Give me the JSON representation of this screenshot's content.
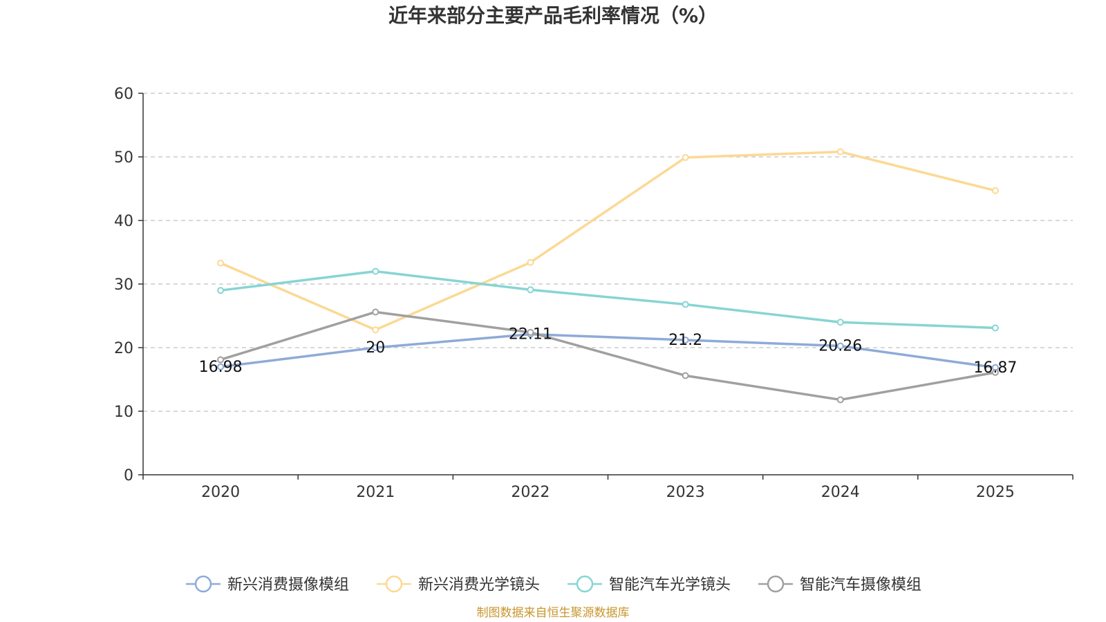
{
  "chart_data": {
    "type": "line",
    "title": "近年来部分主要产品毛利率情况（%）",
    "categories": [
      "2020",
      "2021",
      "2022",
      "2023",
      "2024",
      "2025"
    ],
    "ylim": [
      0,
      60
    ],
    "yticks": [
      0,
      10,
      20,
      30,
      40,
      50,
      60
    ],
    "grid": true,
    "legend_position": "bottom",
    "series": [
      {
        "name": "新兴消费摄像模组",
        "color": "#8eaad8",
        "values": [
          16.98,
          20,
          22.11,
          21.2,
          20.26,
          16.87
        ],
        "show_labels": true
      },
      {
        "name": "新兴消费光学镜头",
        "color": "#fbd994",
        "values": [
          33.3,
          22.8,
          33.4,
          49.9,
          50.8,
          44.7
        ],
        "show_labels": false
      },
      {
        "name": "智能汽车光学镜头",
        "color": "#86d5d3",
        "values": [
          29.0,
          32.0,
          29.1,
          26.8,
          24.0,
          23.1
        ],
        "show_labels": false
      },
      {
        "name": "智能汽车摄像模组",
        "color": "#a0a0a0",
        "values": [
          18.1,
          25.6,
          22.4,
          15.6,
          11.8,
          16.1
        ],
        "show_labels": false
      }
    ],
    "data_labels": [
      "16.98",
      "20",
      "22.11",
      "21.2",
      "20.26",
      "16.87"
    ]
  },
  "source": {
    "text": "制图数据来自恒生聚源数据库",
    "color": "#c8962e"
  }
}
